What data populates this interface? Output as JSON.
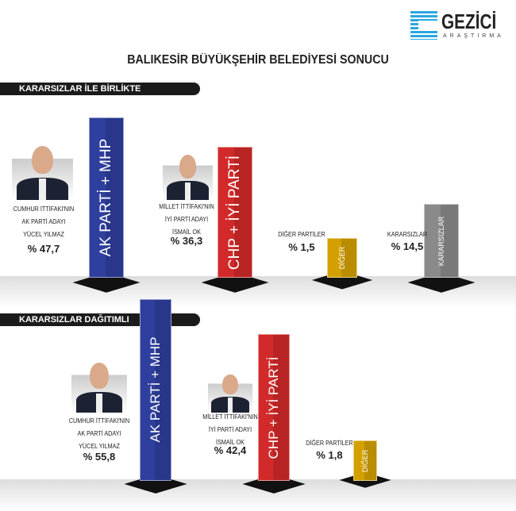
{
  "logo": {
    "name": "GEZİCİ",
    "sub": "ARAŞTIRMA",
    "color": "#2aa7e0"
  },
  "title": "BALIKESİR BÜYÜKŞEHİR BELEDİYESİ SONUCU",
  "chart_data": [
    {
      "type": "bar",
      "title": "KARARSIZLAR İLE BİRLİKTE",
      "categories": [
        "AK PARTİ + MHP",
        "CHP + İYİ PARTİ",
        "DİĞER",
        "KARARSIZLAR"
      ],
      "values": [
        47.7,
        36.3,
        1.5,
        14.5
      ],
      "colors": [
        "#2e3f9e",
        "#d22a2a",
        "#d4a000",
        "#8a8a8a"
      ],
      "labels": [
        {
          "lines": [
            "CUMHUR İTTİFAKI'NIN",
            "AK PARTİ ADAYI",
            "YÜCEL YILMAZ"
          ],
          "pct": "% 47,7"
        },
        {
          "lines": [
            "MİLLET İTTİFAKI'NIN",
            "İYİ PARTİ ADAYI",
            "İSMAİL OK"
          ],
          "pct": "% 36,3"
        },
        {
          "lines": [
            "DİĞER PARTİLER"
          ],
          "pct": "% 1,5"
        },
        {
          "lines": [
            "KARARSIZLAR"
          ],
          "pct": "% 14,5"
        }
      ]
    },
    {
      "type": "bar",
      "title": "KARARSIZLAR DAĞITIMLI",
      "categories": [
        "AK PARTİ + MHP",
        "CHP + İYİ PARTİ",
        "DİĞER"
      ],
      "values": [
        55.8,
        42.4,
        1.8
      ],
      "colors": [
        "#2e3f9e",
        "#d22a2a",
        "#d4a000"
      ],
      "labels": [
        {
          "lines": [
            "CUMHUR İTTİFAKI'NIN",
            "AK PARTİ ADAYI",
            "YÜCEL YILMAZ"
          ],
          "pct": "% 55,8"
        },
        {
          "lines": [
            "MİLLET İTTİFAKI'NIN",
            "İYİ PARTİ ADAYI",
            "İSMAİL OK"
          ],
          "pct": "% 42,4"
        },
        {
          "lines": [
            "DİĞER PARTİLER"
          ],
          "pct": "% 1,8"
        }
      ]
    }
  ]
}
